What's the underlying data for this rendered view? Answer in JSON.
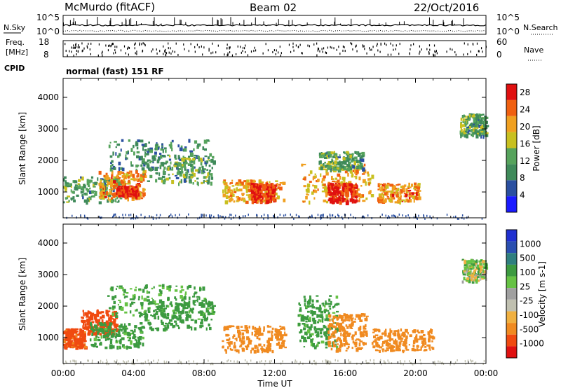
{
  "header": {
    "station": "McMurdo (fitACF)",
    "beam": "Beam 02",
    "date": "22/Oct/2016"
  },
  "noise_panel": {
    "left_label": "N.Sky",
    "right_label": "N.Search",
    "left_top_tick": "10^5",
    "left_bottom_tick": "10^0",
    "right_top_tick": "10^5",
    "right_bottom_tick": "10^0"
  },
  "freq_panel": {
    "left_label_line1": "Freq.",
    "left_label_line2": "[MHz]",
    "right_label": "Nave",
    "left_top_tick": "18",
    "left_bottom_tick": "8",
    "right_top_tick": "60",
    "right_bottom_tick": "0"
  },
  "cpid": {
    "label": "CPID",
    "text": "normal (fast) 151 RF"
  },
  "colors": {
    "power_scale": [
      "#1a1aff",
      "#2a4fa0",
      "#3f8a5a",
      "#56a35c",
      "#c8c020",
      "#f0a020",
      "#f06010",
      "#e01010"
    ],
    "velocity_scale": [
      "#e01010",
      "#f04a10",
      "#f08a20",
      "#f0b040",
      "#c0c0b0",
      "#a0a0a0",
      "#66c244",
      "#3c9a40",
      "#2f7f7f",
      "#2a4fb0",
      "#2030d0"
    ]
  },
  "chart_data": [
    {
      "type": "heatmap",
      "name": "power",
      "xlabel": "Time UT",
      "ylabel": "Slant Range [km]",
      "x_ticks": [
        "00:00",
        "04:00",
        "08:00",
        "12:00",
        "16:00",
        "20:00",
        "00:00"
      ],
      "x_range_hours": [
        0,
        24
      ],
      "y_ticks": [
        "1000",
        "2000",
        "3000",
        "4000"
      ],
      "y_tick_values": [
        1000,
        2000,
        3000,
        4000
      ],
      "ylim": [
        180,
        4600
      ],
      "colorbar_label": "Power [dB]",
      "colorbar_ticks": [
        "4",
        "8",
        "12",
        "16",
        "20",
        "24",
        "28"
      ],
      "colorbar_range": [
        0,
        30
      ],
      "regions": [
        {
          "t0": 0.0,
          "t1": 3.3,
          "r0": 700,
          "r1": 1500,
          "value": 12
        },
        {
          "t0": 2.0,
          "t1": 4.6,
          "r0": 800,
          "r1": 1700,
          "value": 22
        },
        {
          "t0": 3.0,
          "t1": 4.2,
          "r0": 900,
          "r1": 1200,
          "value": 27
        },
        {
          "t0": 2.5,
          "t1": 8.3,
          "r0": 1700,
          "r1": 2700,
          "value": 10
        },
        {
          "t0": 4.5,
          "t1": 8.5,
          "r0": 1300,
          "r1": 2200,
          "value": 12
        },
        {
          "t0": 9.0,
          "t1": 12.5,
          "r0": 700,
          "r1": 1400,
          "value": 20
        },
        {
          "t0": 10.6,
          "t1": 12.0,
          "r0": 700,
          "r1": 1300,
          "value": 27
        },
        {
          "t0": 13.5,
          "t1": 17.5,
          "r0": 700,
          "r1": 1900,
          "value": 20
        },
        {
          "t0": 15.0,
          "t1": 16.6,
          "r0": 700,
          "r1": 1300,
          "value": 28
        },
        {
          "t0": 17.8,
          "t1": 20.2,
          "r0": 700,
          "r1": 1300,
          "value": 22
        },
        {
          "t0": 14.5,
          "t1": 17.0,
          "r0": 1700,
          "r1": 2300,
          "value": 12
        },
        {
          "t0": 22.5,
          "t1": 24.0,
          "r0": 2800,
          "r1": 3500,
          "value": 12
        }
      ]
    },
    {
      "type": "heatmap",
      "name": "velocity",
      "xlabel": "Time UT",
      "ylabel": "Slant Range [km]",
      "x_ticks": [
        "00:00",
        "04:00",
        "08:00",
        "12:00",
        "16:00",
        "20:00",
        "00:00"
      ],
      "x_range_hours": [
        0,
        24
      ],
      "y_ticks": [
        "1000",
        "2000",
        "3000",
        "4000"
      ],
      "y_tick_values": [
        1000,
        2000,
        3000,
        4000
      ],
      "ylim": [
        180,
        4600
      ],
      "colorbar_label": "Velocity [m s-1]",
      "colorbar_ticks": [
        "1000",
        "500",
        "100",
        "25",
        "-25",
        "-100",
        "-500",
        "-1000"
      ],
      "regions": [
        {
          "t0": 0.0,
          "t1": 1.2,
          "r0": 700,
          "r1": 1300,
          "value": -600
        },
        {
          "t0": 1.0,
          "t1": 3.0,
          "r0": 1100,
          "r1": 1900,
          "value": -700
        },
        {
          "t0": 1.5,
          "t1": 4.5,
          "r0": 700,
          "r1": 1500,
          "value": 200
        },
        {
          "t0": 2.5,
          "t1": 8.3,
          "r0": 1700,
          "r1": 2700,
          "value": 150
        },
        {
          "t0": 4.5,
          "t1": 8.5,
          "r0": 1300,
          "r1": 2200,
          "value": 200
        },
        {
          "t0": 9.0,
          "t1": 12.6,
          "r0": 600,
          "r1": 1400,
          "value": -300
        },
        {
          "t0": 13.3,
          "t1": 15.5,
          "r0": 700,
          "r1": 2400,
          "value": 180
        },
        {
          "t0": 15.0,
          "t1": 17.2,
          "r0": 600,
          "r1": 1800,
          "value": -300
        },
        {
          "t0": 17.5,
          "t1": 21.0,
          "r0": 600,
          "r1": 1300,
          "value": -250
        },
        {
          "t0": 22.6,
          "t1": 24.0,
          "r0": 2800,
          "r1": 3500,
          "value": 30
        }
      ]
    }
  ]
}
